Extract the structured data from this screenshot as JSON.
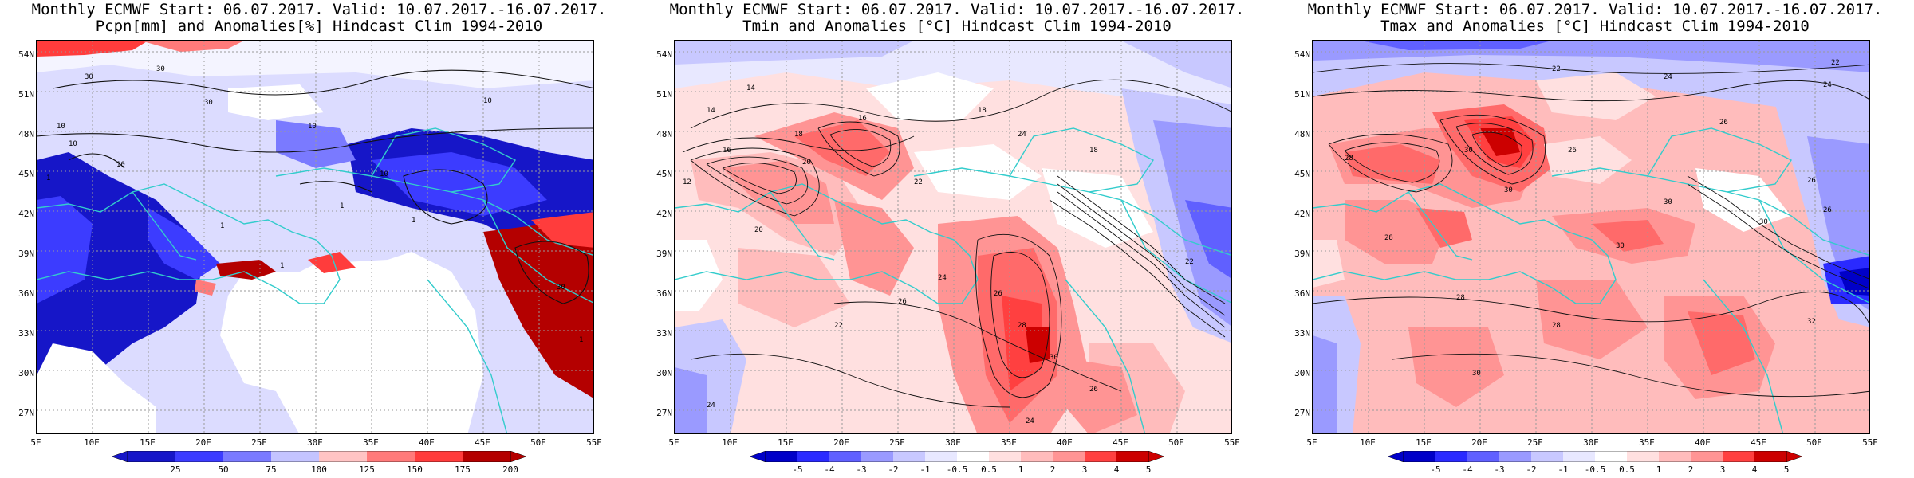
{
  "colors": {
    "coast": "#33cccc",
    "contour": "#111111",
    "grid": "#9a9a9a",
    "precip_scale": [
      "#1616c8",
      "#3c3cff",
      "#7a7aff",
      "#c4c4ff",
      "#ffffff",
      "#ffc4c4",
      "#ff7a7a",
      "#ff3c3c",
      "#b40000"
    ],
    "temp_scale": [
      "#0000c8",
      "#2a2aff",
      "#6060ff",
      "#9a9aff",
      "#c8c8ff",
      "#e8e8ff",
      "#ffffff",
      "#ffe0e0",
      "#ffbcbc",
      "#ff9494",
      "#ff6a6a",
      "#ff4040",
      "#cc0000"
    ]
  },
  "lat_labels": [
    "54N",
    "51N",
    "48N",
    "45N",
    "42N",
    "39N",
    "36N",
    "33N",
    "30N",
    "27N"
  ],
  "lon_labels": [
    "5E",
    "10E",
    "15E",
    "20E",
    "25E",
    "30E",
    "35E",
    "40E",
    "45E",
    "50E",
    "55E"
  ],
  "panels": [
    {
      "title_line1": "Monthly ECMWF Start: 06.07.2017. Valid: 10.07.2017.-16.07.2017.",
      "title_line2": "Pcpn[mm] and Anomalies[%] Hindcast Clim 1994-2010",
      "colorbar_ticks": [
        "25",
        "50",
        "75",
        "100",
        "125",
        "150",
        "175",
        "200"
      ],
      "contour_labels": [
        "30",
        "30",
        "30",
        "10",
        "10",
        "10",
        "10",
        "10",
        "10",
        "1",
        "1",
        "1",
        "1",
        "1",
        "30",
        "1"
      ]
    },
    {
      "title_line1": "Monthly ECMWF Start: 06.07.2017. Valid: 10.07.2017.-16.07.2017.",
      "title_line2": "Tmin and Anomalies [°C] Hindcast Clim 1994-2010",
      "colorbar_ticks": [
        "-5",
        "-4",
        "-3",
        "-2",
        "-1",
        "-0.5",
        "0.5",
        "1",
        "2",
        "3",
        "4",
        "5"
      ],
      "contour_labels": [
        "14",
        "14",
        "16",
        "18",
        "18",
        "12",
        "20",
        "16",
        "22",
        "24",
        "20",
        "26",
        "22",
        "24",
        "26",
        "28",
        "30",
        "26",
        "24",
        "24",
        "18",
        "22"
      ]
    },
    {
      "title_line1": "Monthly ECMWF Start: 06.07.2017. Valid: 10.07.2017.-16.07.2017.",
      "title_line2": "Tmax and Anomalies [°C] Hindcast Clim 1994-2010",
      "colorbar_ticks": [
        "-5",
        "-4",
        "-3",
        "-2",
        "-1",
        "-0.5",
        "0.5",
        "1",
        "2",
        "3",
        "4",
        "5"
      ],
      "contour_labels": [
        "22",
        "24",
        "22",
        "24",
        "26",
        "30",
        "28",
        "26",
        "30",
        "28",
        "30",
        "28",
        "30",
        "26",
        "30",
        "26",
        "28",
        "30",
        "32"
      ]
    }
  ]
}
